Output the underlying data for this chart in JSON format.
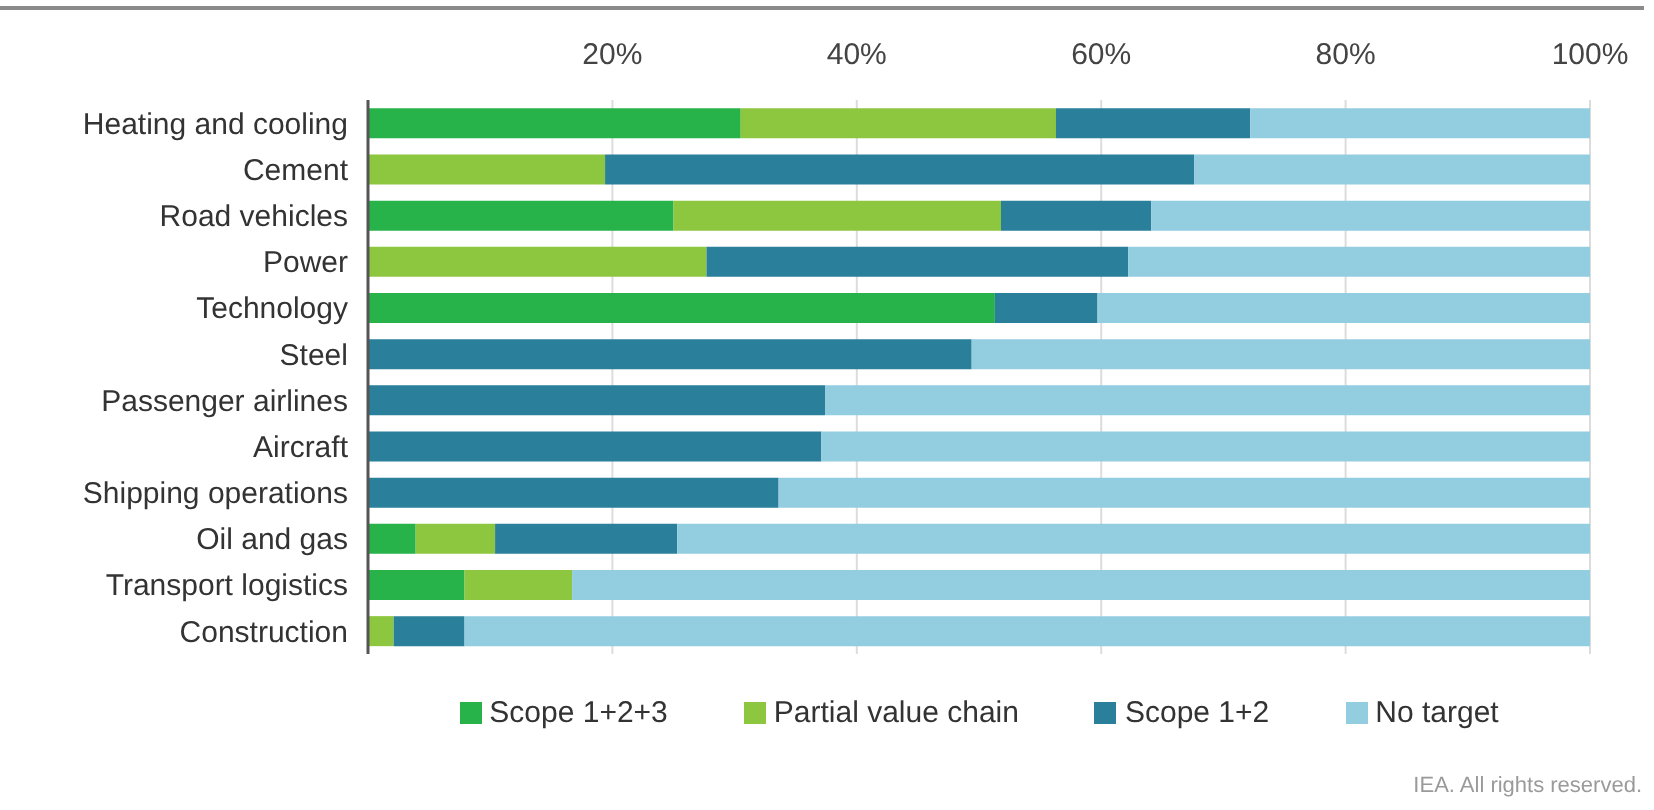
{
  "chart_data": {
    "type": "bar",
    "orientation": "horizontal",
    "stacked": true,
    "categories": [
      "Heating and cooling",
      "Cement",
      "Road vehicles",
      "Power",
      "Technology",
      "Steel",
      "Passenger airlines",
      "Aircraft",
      "Shipping operations",
      "Oil and gas",
      "Transport logistics",
      "Construction"
    ],
    "series": [
      {
        "name": "Scope 1+2+3",
        "color": "#27b24a",
        "values": [
          30.5,
          0,
          25.0,
          0,
          51.3,
          0,
          0,
          0,
          0,
          3.9,
          7.9,
          0
        ]
      },
      {
        "name": "Partial value chain",
        "color": "#8dc63f",
        "values": [
          25.8,
          19.4,
          26.8,
          27.7,
          0,
          0,
          0,
          0,
          0,
          6.5,
          8.8,
          2.1
        ]
      },
      {
        "name": "Scope 1+2",
        "color": "#2a7f9b",
        "values": [
          15.9,
          48.2,
          12.3,
          34.5,
          8.4,
          49.4,
          37.4,
          37.1,
          33.6,
          14.9,
          0,
          5.8
        ]
      },
      {
        "name": "No target",
        "color": "#93cde0",
        "values": [
          27.8,
          32.4,
          35.9,
          37.8,
          40.3,
          50.6,
          62.6,
          62.9,
          66.4,
          74.7,
          83.3,
          92.1
        ]
      }
    ],
    "xlim": [
      0,
      100
    ],
    "xticks": [
      {
        "value": 0,
        "label": null
      },
      {
        "value": 20,
        "label": "20%"
      },
      {
        "value": 40,
        "label": "40%"
      },
      {
        "value": 60,
        "label": "60%"
      },
      {
        "value": 80,
        "label": "80%"
      },
      {
        "value": 100,
        "label": "100%"
      }
    ],
    "grid": "x",
    "legend": "bottom",
    "annotations": [
      "IEA. All rights reserved."
    ]
  }
}
